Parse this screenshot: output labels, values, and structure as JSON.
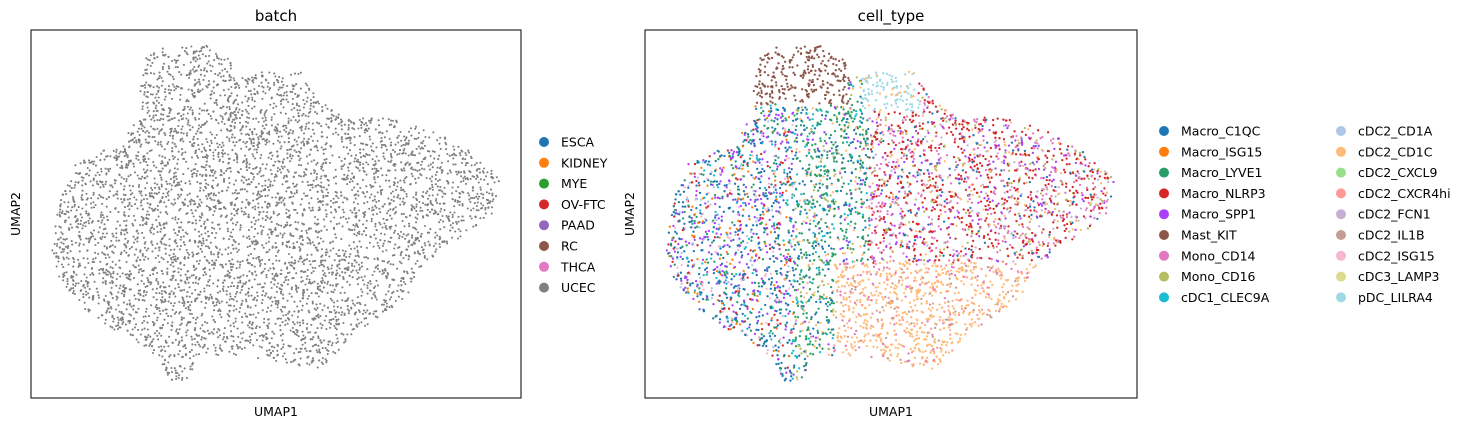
{
  "chart_data": [
    {
      "type": "scatter",
      "title": "batch",
      "xlabel": "UMAP1",
      "ylabel": "UMAP2",
      "xticks": [],
      "yticks": [],
      "legend_position": "right",
      "legend": [
        {
          "label": "ESCA",
          "color": "#1f77b4"
        },
        {
          "label": "KIDNEY",
          "color": "#ff7f0e"
        },
        {
          "label": "MYE",
          "color": "#2ca02c"
        },
        {
          "label": "OV-FTC",
          "color": "#d62728"
        },
        {
          "label": "PAAD",
          "color": "#9467bd"
        },
        {
          "label": "RC",
          "color": "#8c564b"
        },
        {
          "label": "THCA",
          "color": "#e377c2"
        },
        {
          "label": "UCEC",
          "color": "#7f7f7f"
        }
      ],
      "visible_series": "UCEC"
    },
    {
      "type": "scatter",
      "title": "cell_type",
      "xlabel": "UMAP1",
      "ylabel": "UMAP2",
      "xticks": [],
      "yticks": [],
      "legend_position": "right",
      "legend_columns": 2,
      "legend": [
        {
          "label": "Macro_C1QC",
          "color": "#1f77b4"
        },
        {
          "label": "Macro_ISG15",
          "color": "#ff7f0e"
        },
        {
          "label": "Macro_LYVE1",
          "color": "#279e68"
        },
        {
          "label": "Macro_NLRP3",
          "color": "#d62728"
        },
        {
          "label": "Macro_SPP1",
          "color": "#aa40fc"
        },
        {
          "label": "Mast_KIT",
          "color": "#8c564b"
        },
        {
          "label": "Mono_CD14",
          "color": "#e377c2"
        },
        {
          "label": "Mono_CD16",
          "color": "#b5bd61"
        },
        {
          "label": "cDC1_CLEC9A",
          "color": "#17becf"
        },
        {
          "label": "cDC2_CD1A",
          "color": "#aec7e8"
        },
        {
          "label": "cDC2_CD1C",
          "color": "#ffbb78"
        },
        {
          "label": "cDC2_CXCL9",
          "color": "#98df8a"
        },
        {
          "label": "cDC2_CXCR4hi",
          "color": "#ff9896"
        },
        {
          "label": "cDC2_FCN1",
          "color": "#c5b0d5"
        },
        {
          "label": "cDC2_IL1B",
          "color": "#c49c94"
        },
        {
          "label": "cDC2_ISG15",
          "color": "#f7b6d2"
        },
        {
          "label": "cDC3_LAMP3",
          "color": "#dbdb8d"
        },
        {
          "label": "pDC_LILRA4",
          "color": "#9edae5"
        }
      ]
    }
  ]
}
